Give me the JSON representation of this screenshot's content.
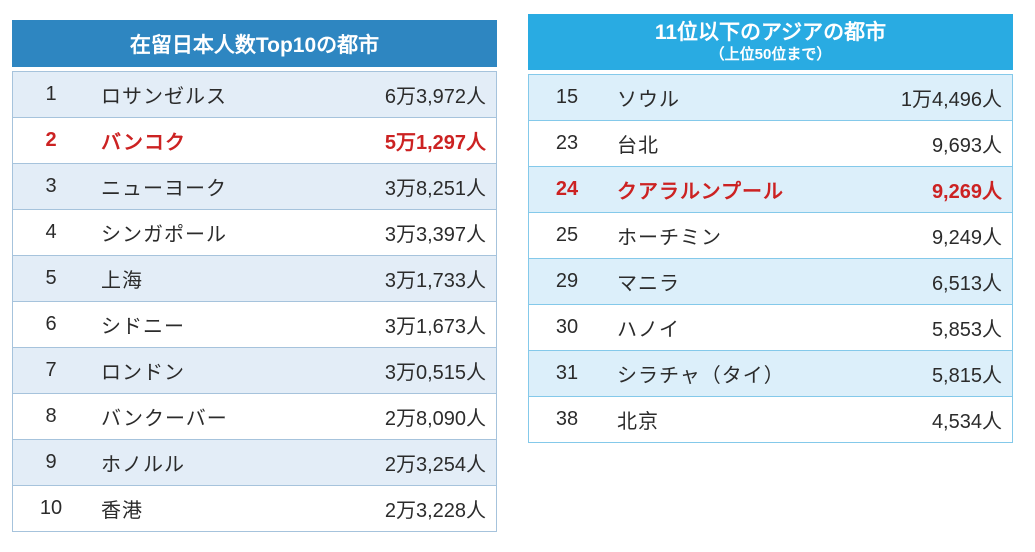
{
  "chart_data": [
    {
      "type": "table",
      "title": "在留日本人数Top10の都市",
      "columns": [
        "rank",
        "city",
        "count"
      ],
      "header_bg": "#2E86C1",
      "alt_row_bg": "#E3EDF7",
      "border_color": "#A6C3DC",
      "highlight_color": "#CC2222",
      "highlighted_rank": "2",
      "rows": [
        {
          "rank": "1",
          "city": "ロサンゼルス",
          "count": "6万3,972人",
          "highlight": false
        },
        {
          "rank": "2",
          "city": "バンコク",
          "count": "5万1,297人",
          "highlight": true
        },
        {
          "rank": "3",
          "city": "ニューヨーク",
          "count": "3万8,251人",
          "highlight": false
        },
        {
          "rank": "4",
          "city": "シンガポール",
          "count": "3万3,397人",
          "highlight": false
        },
        {
          "rank": "5",
          "city": "上海",
          "count": "3万1,733人",
          "highlight": false
        },
        {
          "rank": "6",
          "city": "シドニー",
          "count": "3万1,673人",
          "highlight": false
        },
        {
          "rank": "7",
          "city": "ロンドン",
          "count": "3万0,515人",
          "highlight": false
        },
        {
          "rank": "8",
          "city": "バンクーバー",
          "count": "2万8,090人",
          "highlight": false
        },
        {
          "rank": "9",
          "city": "ホノルル",
          "count": "2万3,254人",
          "highlight": false
        },
        {
          "rank": "10",
          "city": "香港",
          "count": "2万3,228人",
          "highlight": false
        }
      ]
    },
    {
      "type": "table",
      "title": "11位以下のアジアの都市",
      "subtitle": "（上位50位まで）",
      "columns": [
        "rank",
        "city",
        "count"
      ],
      "header_bg": "#29ABE2",
      "alt_row_bg": "#DCEFFA",
      "border_color": "#84C9EA",
      "highlight_color": "#CC2222",
      "highlighted_rank": "24",
      "rows": [
        {
          "rank": "15",
          "city": "ソウル",
          "count": "1万4,496人",
          "highlight": false
        },
        {
          "rank": "23",
          "city": "台北",
          "count": "9,693人",
          "highlight": false
        },
        {
          "rank": "24",
          "city": "クアラルンプール",
          "count": "9,269人",
          "highlight": true
        },
        {
          "rank": "25",
          "city": "ホーチミン",
          "count": "9,249人",
          "highlight": false
        },
        {
          "rank": "29",
          "city": "マニラ",
          "count": "6,513人",
          "highlight": false
        },
        {
          "rank": "30",
          "city": "ハノイ",
          "count": "5,853人",
          "highlight": false
        },
        {
          "rank": "31",
          "city": "シラチャ（タイ）",
          "count": "5,815人",
          "highlight": false
        },
        {
          "rank": "38",
          "city": "北京",
          "count": "4,534人",
          "highlight": false
        }
      ]
    }
  ]
}
